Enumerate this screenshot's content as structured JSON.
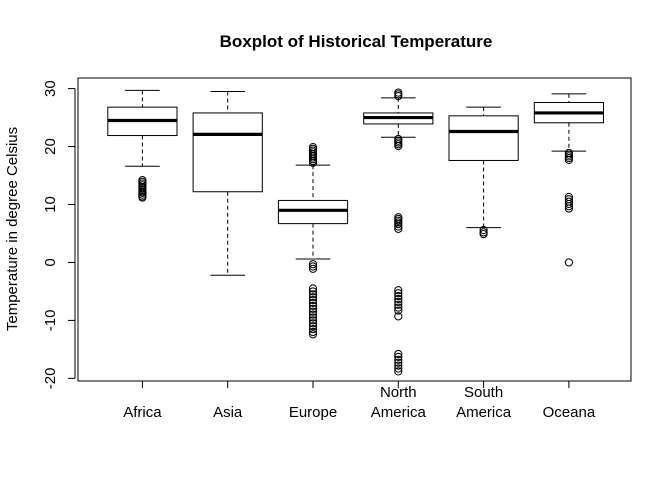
{
  "chart_data": {
    "type": "boxplot",
    "title": "Boxplot of Historical Temperature",
    "xlabel": "",
    "ylabel": "Temperature in degree Celsius",
    "ylim": [
      -20.5,
      31.8
    ],
    "yticks": [
      -20,
      -10,
      0,
      10,
      20,
      30
    ],
    "ytick_labels": [
      "-20",
      "-10",
      "0",
      "10",
      "20",
      "30"
    ],
    "grid": false,
    "categories": [
      {
        "label": "Africa",
        "lines": [
          "Africa"
        ],
        "label_row": "bottom"
      },
      {
        "label": "Asia",
        "lines": [
          "Asia"
        ],
        "label_row": "bottom"
      },
      {
        "label": "Europe",
        "lines": [
          "Europe"
        ],
        "label_row": "bottom"
      },
      {
        "label": "North America",
        "lines": [
          "North",
          "America"
        ],
        "label_row": "two-line"
      },
      {
        "label": "South America",
        "lines": [
          "South",
          "America"
        ],
        "label_row": "two-line"
      },
      {
        "label": "Oceana",
        "lines": [
          "Oceana"
        ],
        "label_row": "bottom"
      }
    ],
    "boxes": [
      {
        "category": "Africa",
        "whisker_low": 16.6,
        "q1": 21.9,
        "median": 24.5,
        "q3": 26.8,
        "whisker_high": 29.7,
        "outliers": [
          14.2,
          13.9,
          13.6,
          13.3,
          13.0,
          12.8,
          12.5,
          12.2,
          12.0,
          11.7,
          11.4,
          11.2
        ]
      },
      {
        "category": "Asia",
        "whisker_low": -2.2,
        "q1": 12.2,
        "median": 22.1,
        "q3": 25.8,
        "whisker_high": 29.5,
        "outliers": []
      },
      {
        "category": "Europe",
        "whisker_low": 0.6,
        "q1": 6.7,
        "median": 9.0,
        "q3": 10.7,
        "whisker_high": 16.8,
        "outliers": [
          19.9,
          19.6,
          19.3,
          19.0,
          18.7,
          18.4,
          18.1,
          17.8,
          17.5,
          17.2,
          -0.3,
          -0.7,
          -1.1,
          -4.5,
          -5.0,
          -5.5,
          -6.0,
          -6.5,
          -7.0,
          -7.5,
          -8.0,
          -8.5,
          -9.0,
          -9.5,
          -10.0,
          -10.5,
          -11.0,
          -11.5,
          -12.0,
          -12.4
        ]
      },
      {
        "category": "North America",
        "whisker_low": 21.6,
        "q1": 23.9,
        "median": 25.0,
        "q3": 25.8,
        "whisker_high": 28.4,
        "outliers": [
          29.3,
          29.0,
          28.7,
          21.3,
          21.0,
          20.7,
          20.4,
          20.1,
          7.8,
          7.5,
          7.2,
          6.9,
          6.6,
          6.2,
          5.8,
          -4.8,
          -5.3,
          -5.8,
          -6.3,
          -6.8,
          -7.3,
          -7.8,
          -8.3,
          -9.3,
          -15.8,
          -16.3,
          -16.8,
          -17.3,
          -17.8,
          -18.3,
          -18.8
        ]
      },
      {
        "category": "South America",
        "whisker_low": 6.0,
        "q1": 17.6,
        "median": 22.6,
        "q3": 25.3,
        "whisker_high": 26.8,
        "outliers": [
          5.6,
          5.2,
          4.9
        ]
      },
      {
        "category": "Oceana",
        "whisker_low": 19.2,
        "q1": 24.1,
        "median": 25.8,
        "q3": 27.6,
        "whisker_high": 29.1,
        "outliers": [
          18.9,
          18.6,
          18.3,
          18.0,
          17.7,
          11.3,
          10.9,
          10.5,
          10.1,
          9.7,
          9.3,
          0.0
        ]
      }
    ]
  }
}
